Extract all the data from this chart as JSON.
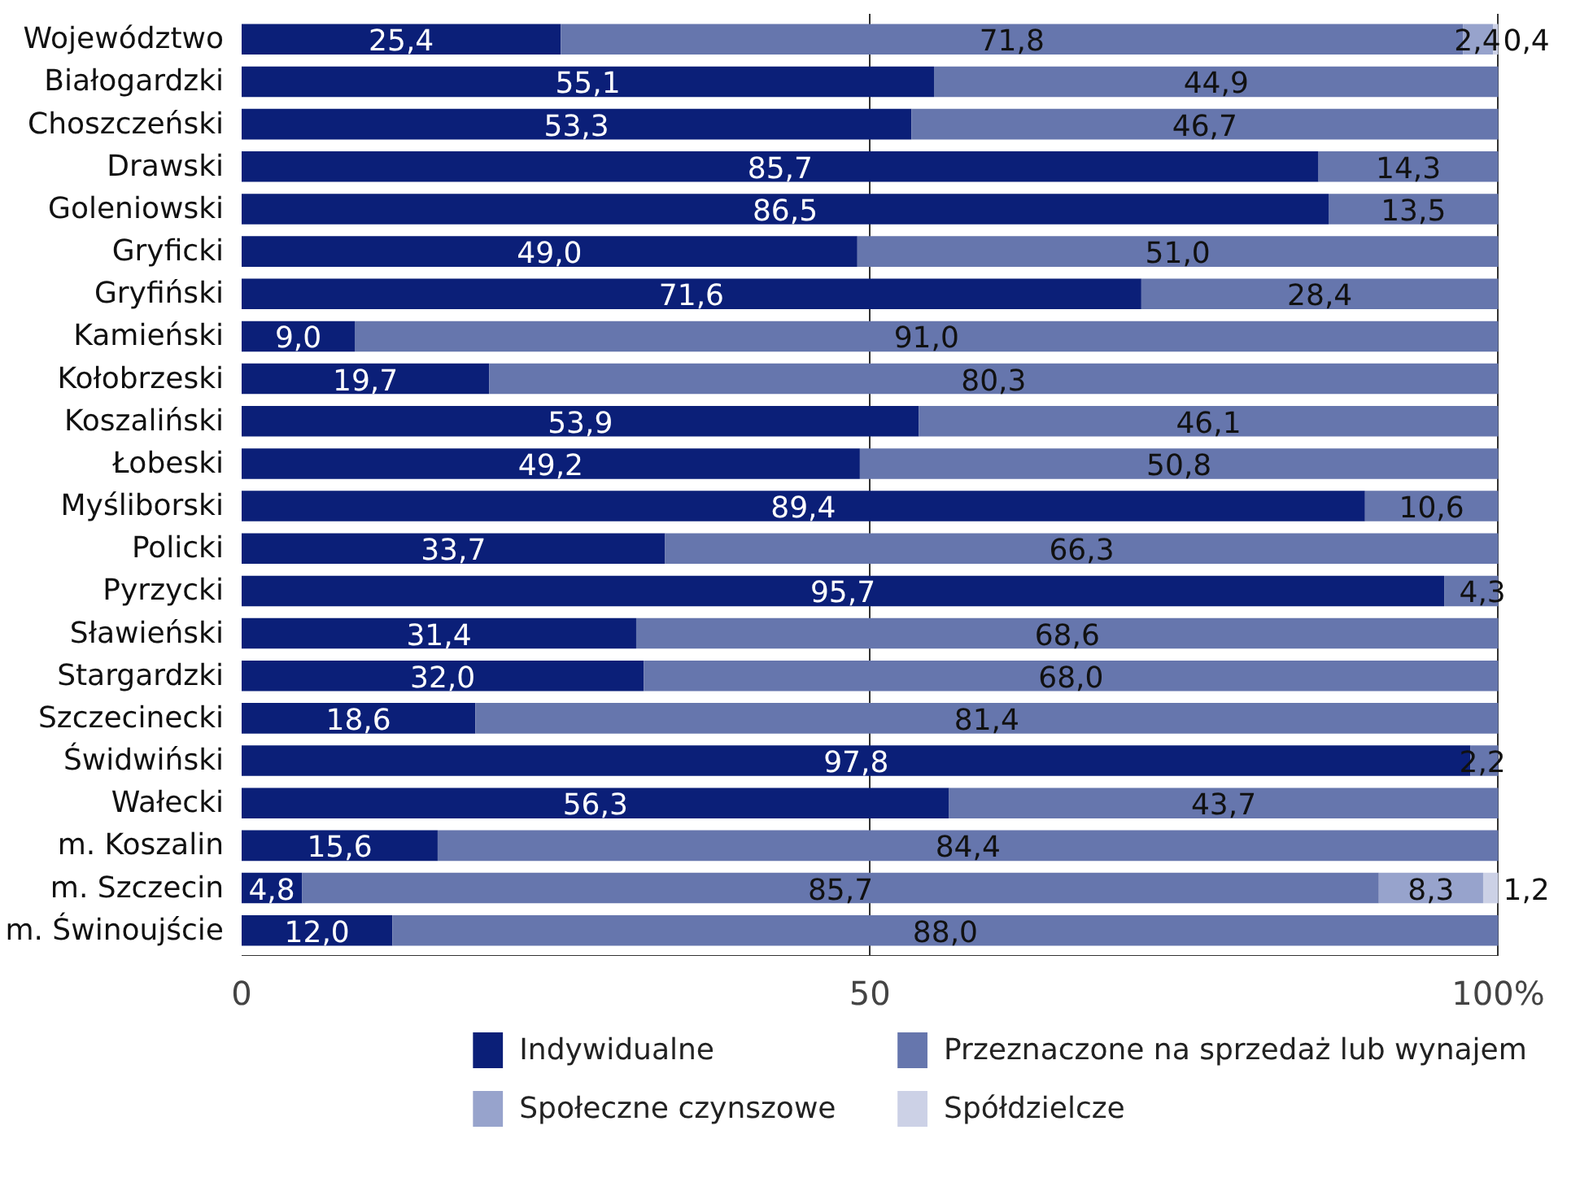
{
  "chart_data": {
    "type": "bar",
    "orientation": "horizontal",
    "stacked": true,
    "categories": [
      "Województwo",
      "Białogardzki",
      "Choszczeński",
      "Drawski",
      "Goleniowski",
      "Gryficki",
      "Gryfiński",
      "Kamieński",
      "Kołobrzeski",
      "Koszaliński",
      "Łobeski",
      "Myśliborski",
      "Policki",
      "Pyrzycki",
      "Sławieński",
      "Stargardzki",
      "Szczecinecki",
      "Świdwiński",
      "Wałecki",
      "m. Koszalin",
      "m. Szczecin",
      "m. Świnoujście"
    ],
    "series": [
      {
        "name": "Indywidualne",
        "color": "#0b1f78",
        "values": [
          25.4,
          55.1,
          53.3,
          85.7,
          86.5,
          49.0,
          71.6,
          9.0,
          19.7,
          53.9,
          49.2,
          89.4,
          33.7,
          95.7,
          31.4,
          32.0,
          18.6,
          97.8,
          56.3,
          15.6,
          4.8,
          12.0
        ],
        "value_labels": [
          "25,4",
          "55,1",
          "53,3",
          "85,7",
          "86,5",
          "49,0",
          "71,6",
          "9,0",
          "19,7",
          "53,9",
          "49,2",
          "89,4",
          "33,7",
          "95,7",
          "31,4",
          "32,0",
          "18,6",
          "97,8",
          "56,3",
          "15,6",
          "4,8",
          "12,0"
        ]
      },
      {
        "name": "Przeznaczone na sprzedaż lub wynajem",
        "color": "#6676ad",
        "values": [
          71.8,
          44.9,
          46.7,
          14.3,
          13.5,
          51.0,
          28.4,
          91.0,
          80.3,
          46.1,
          50.8,
          10.6,
          66.3,
          4.3,
          68.6,
          68.0,
          81.4,
          2.2,
          43.7,
          84.4,
          85.7,
          88.0
        ],
        "value_labels": [
          "71,8",
          "44,9",
          "46,7",
          "14,3",
          "13,5",
          "51,0",
          "28,4",
          "91,0",
          "80,3",
          "46,1",
          "50,8",
          "10,6",
          "66,3",
          "4,3",
          "68,6",
          "68,0",
          "81,4",
          "2,2",
          "43,7",
          "84,4",
          "85,7",
          "88,0"
        ]
      },
      {
        "name": "Społeczne czynszowe",
        "color": "#97a3cc",
        "values": [
          2.4,
          null,
          null,
          null,
          null,
          null,
          null,
          null,
          null,
          null,
          null,
          null,
          null,
          null,
          null,
          null,
          null,
          null,
          null,
          null,
          8.3,
          null
        ],
        "value_labels": [
          "2,4",
          null,
          null,
          null,
          null,
          null,
          null,
          null,
          null,
          null,
          null,
          null,
          null,
          null,
          null,
          null,
          null,
          null,
          null,
          null,
          "8,3",
          null
        ]
      },
      {
        "name": "Spółdzielcze",
        "color": "#ccd1e6",
        "values": [
          0.4,
          null,
          null,
          null,
          null,
          null,
          null,
          null,
          null,
          null,
          null,
          null,
          null,
          null,
          null,
          null,
          null,
          null,
          null,
          null,
          1.2,
          null
        ],
        "value_labels": [
          "0,4",
          null,
          null,
          null,
          null,
          null,
          null,
          null,
          null,
          null,
          null,
          null,
          null,
          null,
          null,
          null,
          null,
          null,
          null,
          null,
          "1,2",
          null
        ]
      }
    ],
    "xlim": [
      0,
      100
    ],
    "xticks": [
      0,
      50,
      {
        "value": 100,
        "label": "100%"
      }
    ],
    "grid": "x",
    "legend": "bottom"
  }
}
